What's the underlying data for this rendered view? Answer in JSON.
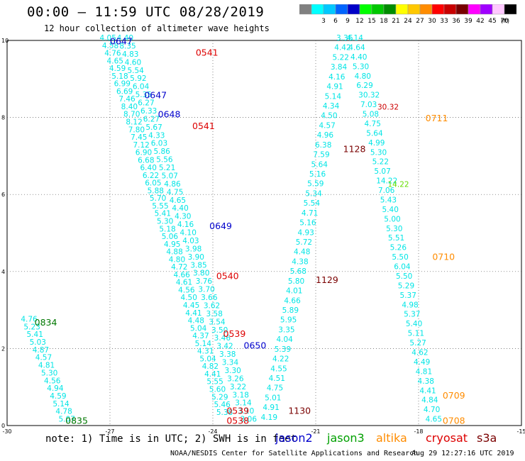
{
  "header": {
    "title": "00:00 – 11:59 UTC 08/28/2019",
    "subtitle": "12 hour collection of altimeter wave heights"
  },
  "colorbar": {
    "unit": "(ft)",
    "bins": [
      {
        "label": "",
        "color": "#808080"
      },
      {
        "label": "3",
        "color": "#00ffff"
      },
      {
        "label": "6",
        "color": "#00c8ff"
      },
      {
        "label": "9",
        "color": "#0064ff"
      },
      {
        "label": "12",
        "color": "#0000c8"
      },
      {
        "label": "15",
        "color": "#00ff00"
      },
      {
        "label": "18",
        "color": "#00c800"
      },
      {
        "label": "21",
        "color": "#008c00"
      },
      {
        "label": "24",
        "color": "#ffff00"
      },
      {
        "label": "27",
        "color": "#ffc800"
      },
      {
        "label": "30",
        "color": "#ff8c00"
      },
      {
        "label": "33",
        "color": "#ff0000"
      },
      {
        "label": "36",
        "color": "#c80000"
      },
      {
        "label": "39",
        "color": "#780000"
      },
      {
        "label": "42",
        "color": "#ff00ff"
      },
      {
        "label": "45",
        "color": "#a000ff"
      },
      {
        "label": "70",
        "color": "#ffc8ff"
      },
      {
        "label": "",
        "color": "#000000"
      }
    ]
  },
  "chart_data": {
    "type": "scatter",
    "title": "00:00 – 11:59 UTC 08/28/2019",
    "subtitle": "12 hour collection of altimeter wave heights",
    "xlim": [
      -30,
      -15
    ],
    "ylim": [
      0,
      10
    ],
    "x_ticks": [
      "-30",
      "-27",
      "-24",
      "-21",
      "-18",
      "-15"
    ],
    "y_ticks": [
      "0",
      "2",
      "4",
      "6",
      "8",
      "10"
    ],
    "grid": true,
    "value_color": "#00e5e5",
    "tracks": [
      {
        "name": "track-a",
        "start": [
          -29.6,
          2.7
        ],
        "end": [
          -28.5,
          0.1
        ],
        "values": [
          "4.76",
          "5.23",
          "5.41",
          "5.03",
          "4.87",
          "4.57",
          "4.81",
          "5.30",
          "4.56",
          "4.94",
          "4.59",
          "5.14",
          "4.78",
          "5.07"
        ]
      },
      {
        "name": "track-b",
        "start": [
          -27.3,
          10.0
        ],
        "end": [
          -23.9,
          0.28
        ],
        "values": [
          "4.05",
          "4.58",
          "4.76",
          "4.65",
          "4.59",
          "5.18",
          "6.99",
          "6.69",
          "7.46",
          "8.40",
          "8.70",
          "8.12",
          "7.80",
          "7.45",
          "7.12",
          "6.90",
          "6.68",
          "6.40",
          "6.22",
          "6.05",
          "5.88",
          "5.70",
          "5.55",
          "5.41",
          "5.30",
          "5.18",
          "5.06",
          "4.95",
          "4.88",
          "4.80",
          "4.72",
          "4.66",
          "4.61",
          "4.56",
          "4.50",
          "4.45",
          "4.41",
          "4.48",
          "5.04",
          "4.37",
          "5.14",
          "4.31",
          "5.04",
          "4.82",
          "4.41",
          "5.55",
          "5.60",
          "5.29",
          "5.46",
          "5.38"
        ]
      },
      {
        "name": "track-c",
        "start": [
          -26.8,
          10.0
        ],
        "end": [
          -23.2,
          0.1
        ],
        "values": [
          "4.40",
          "8.35",
          "4.83",
          "4.60",
          "5.54",
          "5.92",
          "6.04",
          "5.35",
          "6.27",
          "6.33",
          "6.27",
          "5.67",
          "4.33",
          "6.03",
          "5.86",
          "5.56",
          "5.21",
          "5.07",
          "4.86",
          "4.75",
          "4.65",
          "4.40",
          "4.30",
          "4.16",
          "4.10",
          "4.03",
          "3.98",
          "3.90",
          "3.85",
          "3.80",
          "3.76",
          "3.70",
          "3.66",
          "3.62",
          "3.58",
          "3.54",
          "3.50",
          "3.46",
          "3.42",
          "3.38",
          "3.34",
          "3.30",
          "3.26",
          "3.22",
          "3.18",
          "3.14",
          "3.10",
          "3.06"
        ]
      },
      {
        "name": "track-d",
        "start": [
          -22.6,
          0.15
        ],
        "end": [
          -20.4,
          10.0
        ],
        "values": [
          "4.19",
          "4.91",
          "5.01",
          "4.75",
          "4.51",
          "4.55",
          "4.22",
          "5.39",
          "4.04",
          "3.35",
          "5.95",
          "5.89",
          "4.66",
          "4.01",
          "5.80",
          "5.68",
          "4.38",
          "4.48",
          "5.72",
          "4.93",
          "5.16",
          "4.71",
          "5.54",
          "5.34",
          "5.59",
          "5.16",
          "5.64",
          "7.59",
          "6.38",
          "4.96",
          "4.57",
          "4.50",
          "4.34",
          "5.14",
          "4.91",
          "4.16",
          "3.84",
          "5.22",
          "4.42",
          "3.36"
        ]
      },
      {
        "name": "track-e",
        "start": [
          -20.1,
          10.0
        ],
        "end": [
          -17.8,
          0.1
        ],
        "values": [
          "4.14",
          "4.64",
          "4.40",
          "5.30",
          "4.80",
          "6.29",
          "30.32",
          "7.03",
          "5.08",
          "4.75",
          "5.64",
          "4.99",
          "5.30",
          "5.22",
          "5.07",
          "14.22",
          "7.06",
          "5.43",
          "5.40",
          "5.00",
          "5.30",
          "5.51",
          "5.26",
          "5.50",
          "6.04",
          "5.50",
          "5.29",
          "5.37",
          "4.98",
          "5.37",
          "5.40",
          "5.11",
          "5.27",
          "4.62",
          "4.49",
          "4.81",
          "4.38",
          "4.41",
          "4.84",
          "4.70",
          "4.65"
        ]
      }
    ],
    "value_overrides": [
      {
        "x": -19.2,
        "y": 8.2,
        "label": "30.32",
        "color": "#cc0000"
      },
      {
        "x": -18.9,
        "y": 6.2,
        "label": "14.22",
        "color": "#66dd00"
      }
    ],
    "time_labels": [
      {
        "label": "0647",
        "x": -27.0,
        "y": 9.9,
        "color": "#0000cc"
      },
      {
        "label": "0541",
        "x": -24.5,
        "y": 9.6,
        "color": "#dd0000"
      },
      {
        "label": "0647",
        "x": -26.0,
        "y": 8.5,
        "color": "#0000cc"
      },
      {
        "label": "0648",
        "x": -25.6,
        "y": 8.0,
        "color": "#0000cc"
      },
      {
        "label": "0541",
        "x": -24.6,
        "y": 7.7,
        "color": "#dd0000"
      },
      {
        "label": "0649",
        "x": -24.1,
        "y": 5.1,
        "color": "#0000cc"
      },
      {
        "label": "0540",
        "x": -23.9,
        "y": 3.8,
        "color": "#dd0000"
      },
      {
        "label": "0539",
        "x": -23.7,
        "y": 2.3,
        "color": "#dd0000"
      },
      {
        "label": "0650",
        "x": -23.1,
        "y": 2.0,
        "color": "#0000cc"
      },
      {
        "label": "0539",
        "x": -23.6,
        "y": 0.3,
        "color": "#dd0000"
      },
      {
        "label": "0538",
        "x": -23.6,
        "y": 0.05,
        "color": "#dd0000"
      },
      {
        "label": "1128",
        "x": -20.2,
        "y": 7.1,
        "color": "#7a0000"
      },
      {
        "label": "1129",
        "x": -21.0,
        "y": 3.7,
        "color": "#7a0000"
      },
      {
        "label": "1130",
        "x": -21.8,
        "y": 0.3,
        "color": "#7a0000"
      },
      {
        "label": "0711",
        "x": -17.8,
        "y": 7.9,
        "color": "#ff8c00"
      },
      {
        "label": "0710",
        "x": -17.6,
        "y": 4.3,
        "color": "#ff8c00"
      },
      {
        "label": "0709",
        "x": -17.3,
        "y": 0.7,
        "color": "#ff8c00"
      },
      {
        "label": "0708",
        "x": -17.3,
        "y": 0.05,
        "color": "#ff8c00"
      },
      {
        "label": "0834",
        "x": -29.2,
        "y": 2.6,
        "color": "#007700"
      },
      {
        "label": "0835",
        "x": -28.3,
        "y": 0.05,
        "color": "#007700"
      }
    ]
  },
  "footer": {
    "note": "note: 1) Time is in UTC; 2) SWH is in feet",
    "legend": [
      {
        "label": "jason2",
        "color": "#0000cc"
      },
      {
        "label": "jason3",
        "color": "#00a000"
      },
      {
        "label": "altika",
        "color": "#ff8c00"
      },
      {
        "label": "cryosat",
        "color": "#dd0000"
      },
      {
        "label": "s3a",
        "color": "#7a0000"
      }
    ],
    "credit": "NOAA/NESDIS Center for Satellite Applications and Research",
    "timestamp": "Aug 29 12:27:16 UTC 2019"
  }
}
